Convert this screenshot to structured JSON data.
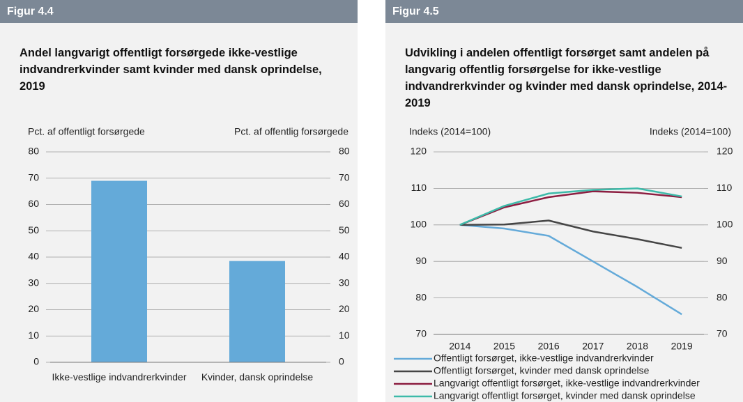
{
  "chart_data": [
    {
      "type": "bar",
      "figure_label": "Figur 4.4",
      "title": "Andel langvarigt offentligt forsørgede ikke-vestlige indvandrerkvinder samt kvinder med dansk oprindelse, 2019",
      "y_label": "Pct. af offentligt forsørgede",
      "y2_label": "Pct. af offentlig forsørgede",
      "categories": [
        "Ikke-vestlige indvandrerkvinder",
        "Kvinder, dansk oprindelse"
      ],
      "values": [
        69,
        38.5
      ],
      "color": "#64aad9",
      "ylim": [
        0,
        80
      ],
      "yticks": [
        0,
        10,
        20,
        30,
        40,
        50,
        60,
        70,
        80
      ],
      "y2lim": [
        0,
        80
      ],
      "y2ticks": [
        0,
        10,
        20,
        30,
        40,
        50,
        60,
        70,
        80
      ],
      "grid": true
    },
    {
      "type": "line",
      "figure_label": "Figur 4.5",
      "title": "Udvikling i andelen offentligt forsørget samt andelen på langvarig offentlig forsørgelse for ikke-vestlige indvandrerkvinder og kvinder med dansk oprindelse, 2014-2019",
      "y_label": "Indeks (2014=100)",
      "y2_label": "Indeks (2014=100)",
      "categories": [
        "2014",
        "2015",
        "2016",
        "2017",
        "2018",
        "2019"
      ],
      "series": [
        {
          "name": "Offentligt forsørget, ikke-vestlige indvandrerkvinder",
          "color": "#64aad9",
          "values": [
            100,
            99,
            97,
            90,
            83,
            75.5
          ]
        },
        {
          "name": "Offentligt forsørget, kvinder med dansk oprindelse",
          "color": "#454545",
          "values": [
            100,
            100.1,
            101.2,
            98.2,
            96.1,
            93.7
          ]
        },
        {
          "name": "Langvarigt offentligt forsørget, ikke-vestlige indvandrerkvinder",
          "color": "#8c1d40",
          "values": [
            100,
            104.8,
            107.6,
            109.2,
            108.8,
            107.6
          ]
        },
        {
          "name": "Langvarigt offentligt forsørget, kvinder med dansk oprindelse",
          "color": "#3dbaa9",
          "values": [
            100,
            105.2,
            108.6,
            109.6,
            110,
            107.8
          ]
        }
      ],
      "ylim": [
        70,
        120
      ],
      "yticks": [
        70,
        80,
        90,
        100,
        110,
        120
      ],
      "y2lim": [
        70,
        120
      ],
      "y2ticks": [
        70,
        80,
        90,
        100,
        110,
        120
      ],
      "grid": true
    }
  ]
}
